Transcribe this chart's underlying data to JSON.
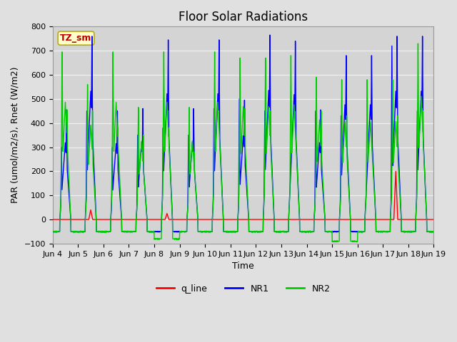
{
  "title": "Floor Solar Radiations",
  "xlabel": "Time",
  "ylabel": "PAR (umol/m2/s), Rnet (W/m2)",
  "ylim": [
    -100,
    800
  ],
  "num_days": 15,
  "xtick_labels": [
    "Jun 4",
    "Jun 5",
    "Jun 6",
    "Jun 7",
    "Jun 8",
    "Jun 9",
    "Jun 10",
    "Jun 11",
    "Jun 12",
    "Jun 13",
    "Jun 14",
    "Jun 15",
    "Jun 16",
    "Jun 17",
    "Jun 18",
    "Jun 19"
  ],
  "legend_labels": [
    "q_line",
    "NR1",
    "NR2"
  ],
  "legend_colors": [
    "#ff0000",
    "#0000ff",
    "#00cc00"
  ],
  "annotation_text": "TZ_sm",
  "annotation_facecolor": "#ffffcc",
  "annotation_edgecolor": "#bbaa00",
  "annotation_textcolor": "#bb0000",
  "figure_facecolor": "#e0e0e0",
  "axes_facecolor": "#d4d4d4",
  "grid_color": "#f0f0f0",
  "title_fontsize": 12,
  "label_fontsize": 9,
  "tick_fontsize": 8,
  "NR1_day_peaks": [
    455,
    760,
    450,
    460,
    745,
    460,
    745,
    495,
    765,
    740,
    455,
    680,
    680,
    760,
    760
  ],
  "NR1_day_secondary": [
    300,
    450,
    300,
    350,
    380,
    350,
    460,
    500,
    450,
    0,
    450,
    430,
    0,
    720,
    450
  ],
  "NR2_day_peaks": [
    695,
    560,
    695,
    465,
    695,
    465,
    695,
    670,
    670,
    680,
    590,
    580,
    580,
    580,
    730
  ],
  "NR2_day_secondary": [
    455,
    450,
    380,
    350,
    380,
    280,
    200,
    460,
    450,
    0,
    450,
    430,
    0,
    430,
    450
  ],
  "NR_night": -50,
  "NR2_special_troughs": {
    "8": -80,
    "15": -90
  },
  "q_line_day_peaks": [
    5,
    40,
    5,
    5,
    25,
    5,
    5,
    5,
    5,
    5,
    5,
    5,
    5,
    200,
    5
  ],
  "samples_per_day": 144
}
